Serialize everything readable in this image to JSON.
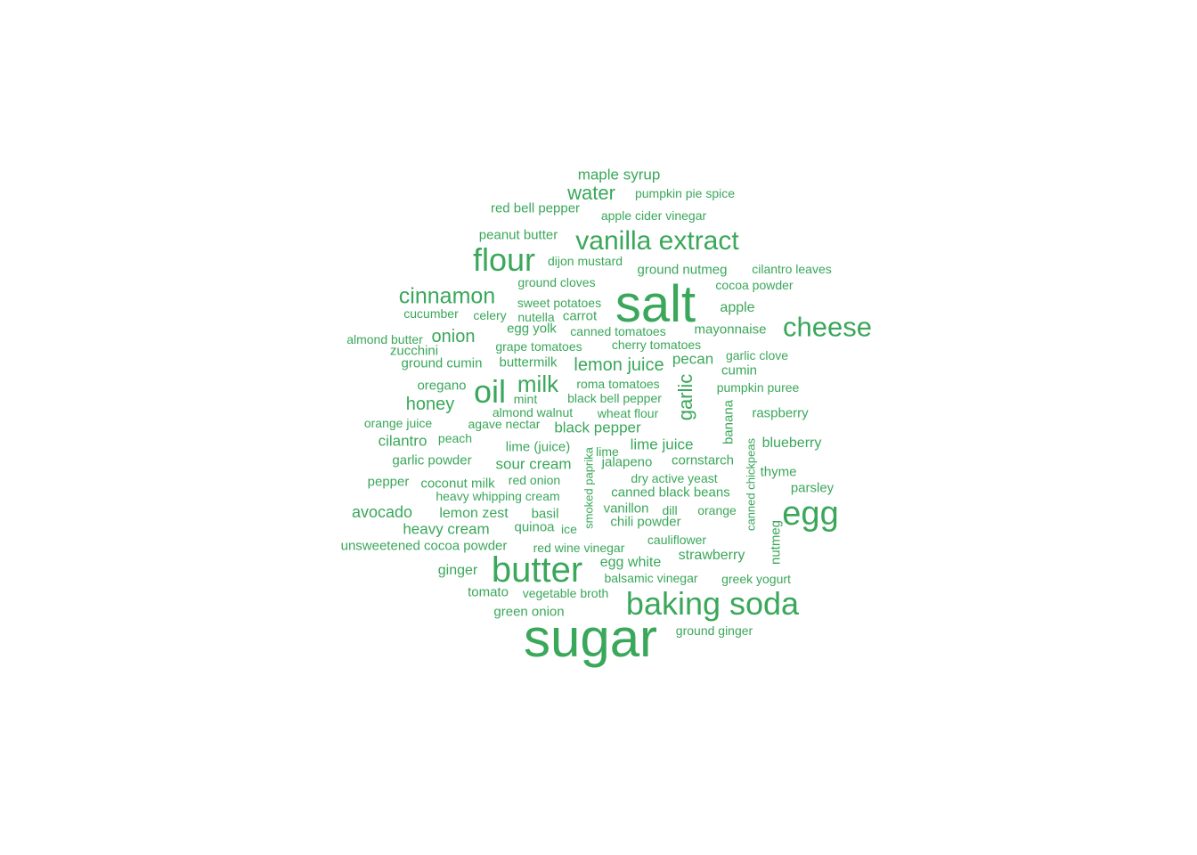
{
  "color": "#3aa75a",
  "words": [
    {
      "text": "sugar",
      "freq": 40
    },
    {
      "text": "salt",
      "freq": 36
    },
    {
      "text": "butter",
      "freq": 24
    },
    {
      "text": "baking soda",
      "freq": 22
    },
    {
      "text": "flour",
      "freq": 22
    },
    {
      "text": "egg",
      "freq": 22
    },
    {
      "text": "cheese",
      "freq": 18
    },
    {
      "text": "oil",
      "freq": 20
    },
    {
      "text": "vanilla extract",
      "freq": 17
    },
    {
      "text": "cinnamon",
      "freq": 16
    },
    {
      "text": "milk",
      "freq": 15
    },
    {
      "text": "water",
      "freq": 14
    },
    {
      "text": "garlic",
      "freq": 13
    },
    {
      "text": "avocado",
      "freq": 11
    },
    {
      "text": "onion",
      "freq": 11
    },
    {
      "text": "honey",
      "freq": 11
    },
    {
      "text": "lemon juice",
      "freq": 11
    },
    {
      "text": "maple syrup",
      "freq": 10
    },
    {
      "text": "cilantro",
      "freq": 10
    },
    {
      "text": "heavy cream",
      "freq": 10
    },
    {
      "text": "black pepper",
      "freq": 10
    },
    {
      "text": "sour cream",
      "freq": 10
    },
    {
      "text": "lime juice",
      "freq": 10
    },
    {
      "text": "egg white",
      "freq": 10
    },
    {
      "text": "lemon zest",
      "freq": 10
    },
    {
      "text": "ginger",
      "freq": 10
    },
    {
      "text": "pecan",
      "freq": 10
    },
    {
      "text": "strawberry",
      "freq": 10
    },
    {
      "text": "apple",
      "freq": 10
    },
    {
      "text": "blueberry",
      "freq": 10
    },
    {
      "text": "red bell pepper",
      "freq": 9
    },
    {
      "text": "peanut butter",
      "freq": 9
    },
    {
      "text": "ground nutmeg",
      "freq": 9
    },
    {
      "text": "mayonnaise",
      "freq": 9
    },
    {
      "text": "oregano",
      "freq": 9
    },
    {
      "text": "garlic powder",
      "freq": 9
    },
    {
      "text": "pepper",
      "freq": 9
    },
    {
      "text": "coconut milk",
      "freq": 9
    },
    {
      "text": "unsweetened cocoa powder",
      "freq": 9
    },
    {
      "text": "tomato",
      "freq": 9
    },
    {
      "text": "green onion",
      "freq": 9
    },
    {
      "text": "canned black beans",
      "freq": 9
    },
    {
      "text": "vanillon",
      "freq": 9
    },
    {
      "text": "chili powder",
      "freq": 9
    },
    {
      "text": "cornstarch",
      "freq": 9
    },
    {
      "text": "thyme",
      "freq": 9
    },
    {
      "text": "parsley",
      "freq": 9
    },
    {
      "text": "raspberry",
      "freq": 9
    },
    {
      "text": "cumin",
      "freq": 9
    },
    {
      "text": "basil",
      "freq": 9
    },
    {
      "text": "quinoa",
      "freq": 9
    },
    {
      "text": "jalapeno",
      "freq": 9
    },
    {
      "text": "lime (juice)",
      "freq": 9
    },
    {
      "text": "buttermilk",
      "freq": 9
    },
    {
      "text": "ground cumin",
      "freq": 9
    },
    {
      "text": "zucchini",
      "freq": 9
    },
    {
      "text": "egg yolk",
      "freq": 9
    },
    {
      "text": "carrot",
      "freq": 9
    },
    {
      "text": "banana",
      "freq": 9
    },
    {
      "text": "nutmeg",
      "freq": 9
    },
    {
      "text": "pumpkin pie spice",
      "freq": 8
    },
    {
      "text": "apple cider vinegar",
      "freq": 8
    },
    {
      "text": "dijon mustard",
      "freq": 8
    },
    {
      "text": "cilantro leaves",
      "freq": 8
    },
    {
      "text": "ground cloves",
      "freq": 8
    },
    {
      "text": "cocoa powder",
      "freq": 8
    },
    {
      "text": "sweet potatoes",
      "freq": 8
    },
    {
      "text": "cucumber",
      "freq": 8
    },
    {
      "text": "celery",
      "freq": 8
    },
    {
      "text": "nutella",
      "freq": 8
    },
    {
      "text": "almond butter",
      "freq": 8
    },
    {
      "text": "canned tomatoes",
      "freq": 8
    },
    {
      "text": "grape tomatoes",
      "freq": 8
    },
    {
      "text": "cherry tomatoes",
      "freq": 8
    },
    {
      "text": "garlic clove",
      "freq": 8
    },
    {
      "text": "roma tomatoes",
      "freq": 8
    },
    {
      "text": "pumpkin puree",
      "freq": 8
    },
    {
      "text": "mint",
      "freq": 8
    },
    {
      "text": "black bell pepper",
      "freq": 8
    },
    {
      "text": "almond walnut",
      "freq": 8
    },
    {
      "text": "wheat flour",
      "freq": 8
    },
    {
      "text": "orange juice",
      "freq": 8
    },
    {
      "text": "agave nectar",
      "freq": 8
    },
    {
      "text": "peach",
      "freq": 8
    },
    {
      "text": "lime",
      "freq": 8
    },
    {
      "text": "dry active yeast",
      "freq": 8
    },
    {
      "text": "red onion",
      "freq": 8
    },
    {
      "text": "heavy whipping cream",
      "freq": 8
    },
    {
      "text": "dill",
      "freq": 8
    },
    {
      "text": "orange",
      "freq": 8
    },
    {
      "text": "ice",
      "freq": 8
    },
    {
      "text": "red wine vinegar",
      "freq": 8
    },
    {
      "text": "cauliflower",
      "freq": 8
    },
    {
      "text": "balsamic vinegar",
      "freq": 8
    },
    {
      "text": "greek yogurt",
      "freq": 8
    },
    {
      "text": "vegetable broth",
      "freq": 8
    },
    {
      "text": "ground ginger",
      "freq": 8
    },
    {
      "text": "smoked paprika",
      "freq": 8
    },
    {
      "text": "canned chickpeas",
      "freq": 8
    }
  ]
}
